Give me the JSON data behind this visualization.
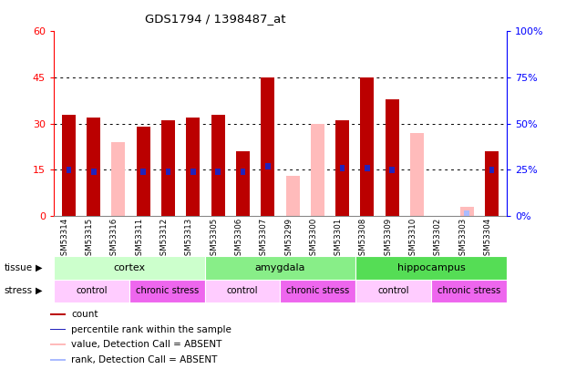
{
  "title": "GDS1794 / 1398487_at",
  "samples": [
    "GSM53314",
    "GSM53315",
    "GSM53316",
    "GSM53311",
    "GSM53312",
    "GSM53313",
    "GSM53305",
    "GSM53306",
    "GSM53307",
    "GSM53299",
    "GSM53300",
    "GSM53301",
    "GSM53308",
    "GSM53309",
    "GSM53310",
    "GSM53302",
    "GSM53303",
    "GSM53304"
  ],
  "red_bars": [
    33,
    32,
    0,
    29,
    31,
    32,
    33,
    21,
    45,
    0,
    0,
    31,
    45,
    38,
    0,
    0,
    0,
    21
  ],
  "pink_bars": [
    0,
    0,
    24,
    0,
    0,
    0,
    0,
    0,
    0,
    13,
    30,
    0,
    0,
    0,
    27,
    0,
    3,
    0
  ],
  "blue_marker_val": [
    25,
    24,
    0,
    24,
    24,
    24,
    24,
    24,
    27,
    0,
    0,
    26,
    26,
    25,
    0,
    0,
    0,
    25
  ],
  "light_blue_val": [
    0,
    0,
    0,
    0,
    0,
    0,
    0,
    0,
    0,
    0,
    0,
    0,
    0,
    0,
    0,
    0,
    3,
    0
  ],
  "ylim_left": [
    0,
    60
  ],
  "ylim_right": [
    0,
    100
  ],
  "yticks_left": [
    0,
    15,
    30,
    45,
    60
  ],
  "yticks_right": [
    0,
    25,
    50,
    75,
    100
  ],
  "tissue_groups": [
    {
      "label": "cortex",
      "start": 0,
      "end": 6,
      "color": "#ccffcc"
    },
    {
      "label": "amygdala",
      "start": 6,
      "end": 12,
      "color": "#88ee88"
    },
    {
      "label": "hippocampus",
      "start": 12,
      "end": 18,
      "color": "#55dd55"
    }
  ],
  "stress_groups": [
    {
      "label": "control",
      "start": 0,
      "end": 3,
      "color": "#ffccff"
    },
    {
      "label": "chronic stress",
      "start": 3,
      "end": 6,
      "color": "#ee66ee"
    },
    {
      "label": "control",
      "start": 6,
      "end": 9,
      "color": "#ffccff"
    },
    {
      "label": "chronic stress",
      "start": 9,
      "end": 12,
      "color": "#ee66ee"
    },
    {
      "label": "control",
      "start": 12,
      "end": 15,
      "color": "#ffccff"
    },
    {
      "label": "chronic stress",
      "start": 15,
      "end": 18,
      "color": "#ee66ee"
    }
  ],
  "bar_width": 0.55,
  "red_color": "#bb0000",
  "pink_color": "#ffbbbb",
  "blue_color": "#2222bb",
  "light_blue_color": "#aabbff",
  "legend_items": [
    {
      "label": "count",
      "color": "#bb0000"
    },
    {
      "label": "percentile rank within the sample",
      "color": "#2222bb"
    },
    {
      "label": "value, Detection Call = ABSENT",
      "color": "#ffbbbb"
    },
    {
      "label": "rank, Detection Call = ABSENT",
      "color": "#aabbff"
    }
  ]
}
